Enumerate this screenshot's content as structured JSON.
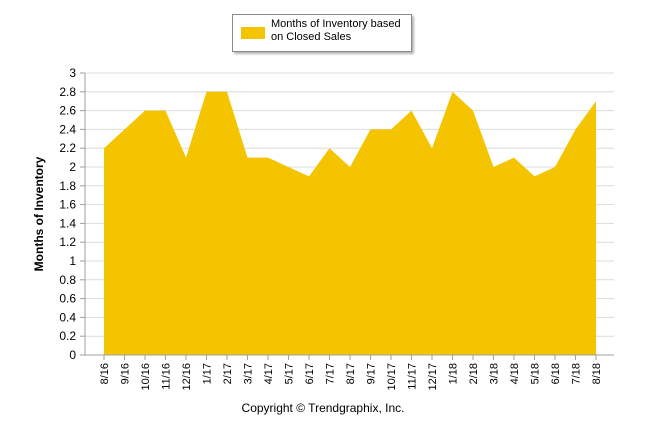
{
  "chart_data": {
    "type": "area",
    "title": "",
    "xlabel": "",
    "ylabel": "Months of Inventory",
    "ylim": [
      0,
      3
    ],
    "ytick_step": 0.2,
    "grid": "horizontal",
    "legend_position": "top-center",
    "categories": [
      "8/16",
      "9/16",
      "10/16",
      "11/16",
      "12/16",
      "1/17",
      "2/17",
      "3/17",
      "4/17",
      "5/17",
      "6/17",
      "7/17",
      "8/17",
      "9/17",
      "10/17",
      "11/17",
      "12/17",
      "1/18",
      "2/18",
      "3/18",
      "4/18",
      "5/18",
      "6/18",
      "7/18",
      "8/18"
    ],
    "series": [
      {
        "name": "Months of Inventory based on Closed Sales",
        "color": "#F5C400",
        "values": [
          2.2,
          2.4,
          2.6,
          2.6,
          2.1,
          2.8,
          2.8,
          2.1,
          2.1,
          2.0,
          1.9,
          2.2,
          2.0,
          2.4,
          2.4,
          2.6,
          2.2,
          2.8,
          2.6,
          2.0,
          2.1,
          1.9,
          2.0,
          2.4,
          2.7
        ]
      }
    ]
  },
  "legend": {
    "label": "Months of Inventory based on Closed Sales"
  },
  "footer": {
    "copyright": "Copyright © Trendgraphix, Inc."
  }
}
